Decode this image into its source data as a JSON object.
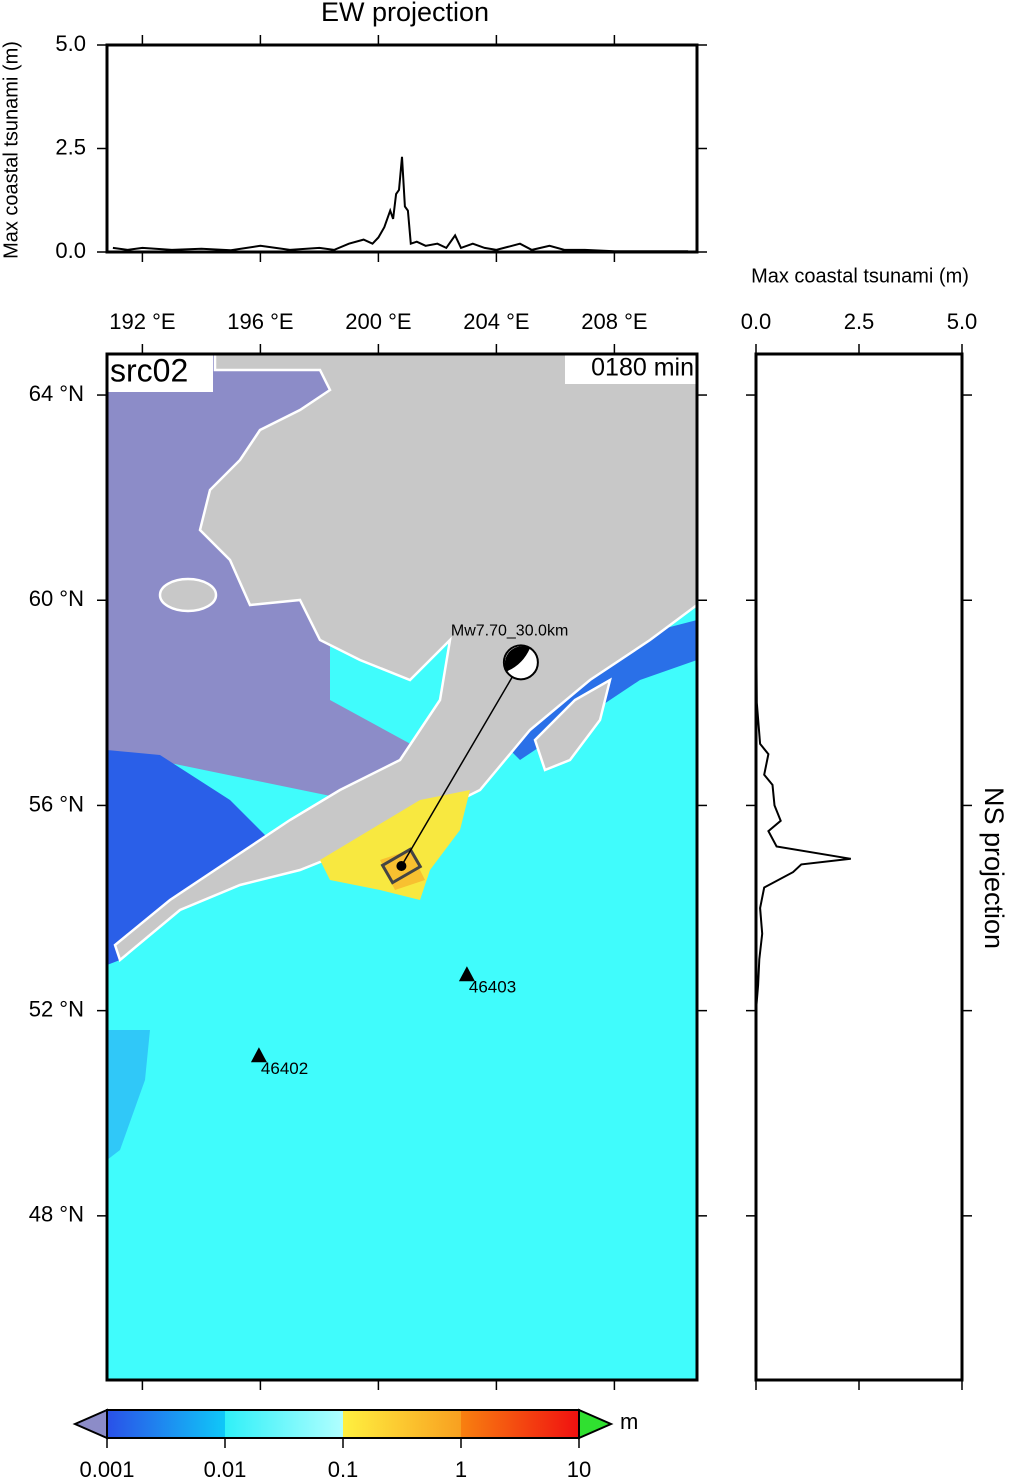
{
  "chart_data": [
    {
      "type": "line",
      "title": "EW projection",
      "y_label": "Max coastal tsunami (m)",
      "xlim": [
        190.8,
        210.8
      ],
      "ylim": [
        0,
        5
      ],
      "yticks": [
        {
          "value": 0,
          "label": "0.0"
        },
        2.5,
        {
          "value": 5,
          "label": "5.0"
        }
      ],
      "x": [
        191.0,
        191.5,
        192,
        193,
        194,
        195,
        196,
        197,
        198,
        198.5,
        199,
        199.5,
        199.8,
        200,
        200.2,
        200.4,
        200.5,
        200.6,
        200.7,
        200.8,
        200.9,
        201.0,
        201.1,
        201.3,
        201.6,
        202,
        202.3,
        202.6,
        202.8,
        203.2,
        203.6,
        204,
        204.8,
        205.2,
        205.8,
        206.3,
        207,
        208,
        209,
        210.5
      ],
      "series": [
        {
          "color": "#000000",
          "values": [
            0.1,
            0.05,
            0.1,
            0.05,
            0.08,
            0.04,
            0.15,
            0.05,
            0.1,
            0.05,
            0.2,
            0.3,
            0.2,
            0.35,
            0.6,
            1.0,
            0.8,
            1.4,
            1.5,
            2.3,
            1.1,
            1.0,
            0.2,
            0.25,
            0.15,
            0.2,
            0.1,
            0.4,
            0.1,
            0.2,
            0.1,
            0.05,
            0.2,
            0.05,
            0.15,
            0.05,
            0.05,
            0.02,
            0.02,
            0.02
          ]
        }
      ]
    },
    {
      "type": "line-vertical",
      "title": "NS projection",
      "x_label": "Max coastal tsunami (m)",
      "xlim": [
        0,
        5
      ],
      "ylim": [
        44.8,
        64.8
      ],
      "xticks": [
        {
          "value": 0,
          "label": "0.0"
        },
        2.5,
        {
          "value": 5,
          "label": "5.0"
        }
      ],
      "y": [
        60.0,
        58.0,
        57.2,
        57.0,
        56.6,
        56.4,
        56.0,
        55.7,
        55.5,
        55.2,
        54.96,
        54.85,
        54.7,
        54.4,
        54.0,
        53.5,
        53.0,
        52.5,
        52.0
      ],
      "series": [
        {
          "color": "#000000",
          "values": [
            0,
            0.02,
            0.1,
            0.3,
            0.2,
            0.4,
            0.45,
            0.6,
            0.3,
            0.5,
            2.3,
            1.1,
            0.9,
            0.2,
            0.1,
            0.15,
            0.08,
            0.05,
            0
          ]
        }
      ]
    },
    {
      "type": "map",
      "label": "src02",
      "time_label": "0180 min",
      "xlim": [
        190.8,
        210.8
      ],
      "ylim": [
        44.8,
        64.8
      ],
      "xticks": [
        {
          "value": 192,
          "label": "192 °E"
        },
        {
          "value": 196,
          "label": "196 °E"
        },
        {
          "value": 200,
          "label": "200 °E"
        },
        {
          "value": 204,
          "label": "204 °E"
        },
        {
          "value": 208,
          "label": "208 °E"
        }
      ],
      "yticks": [
        {
          "value": 64,
          "label": "64 °N"
        },
        {
          "value": 60,
          "label": "60 °N"
        },
        {
          "value": 56,
          "label": "56 °N"
        },
        {
          "value": 52,
          "label": "52 °N"
        },
        {
          "value": 48,
          "label": "48 °N"
        }
      ],
      "source": {
        "label": "Mw7.70_30.0km",
        "lon": 200.78,
        "lat": 54.82,
        "mech_lon": 204.83,
        "mech_lat": 58.79
      },
      "stations": [
        {
          "name": "46403",
          "lon": 203.0,
          "lat": 52.69
        },
        {
          "name": "46402",
          "lon": 195.95,
          "lat": 51.11
        }
      ]
    },
    {
      "type": "colorbar",
      "unit": "m",
      "log_scale": true,
      "lim": [
        0.001,
        10
      ],
      "ticks": [
        0.001,
        0.01,
        0.1,
        1,
        10
      ]
    }
  ]
}
